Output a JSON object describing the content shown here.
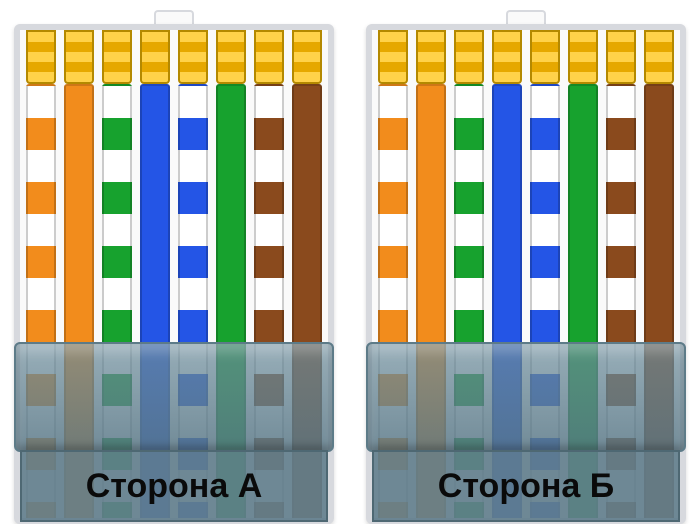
{
  "type": "infographic",
  "description": "RJ45 ethernet connector wiring diagram, two connectors side A and side B",
  "background_color": "#ffffff",
  "connectors": [
    {
      "label": "Сторона А",
      "wires": [
        {
          "base": "#ffffff",
          "stripe": "#f28c1c",
          "striped": true
        },
        {
          "base": "#f28c1c",
          "striped": false
        },
        {
          "base": "#ffffff",
          "stripe": "#17a22e",
          "striped": true
        },
        {
          "base": "#2455e6",
          "striped": false
        },
        {
          "base": "#ffffff",
          "stripe": "#2455e6",
          "striped": true
        },
        {
          "base": "#17a22e",
          "striped": false
        },
        {
          "base": "#ffffff",
          "stripe": "#8a4a1d",
          "striped": true
        },
        {
          "base": "#8a4a1d",
          "striped": false
        }
      ]
    },
    {
      "label": "Сторона Б",
      "wires": [
        {
          "base": "#ffffff",
          "stripe": "#f28c1c",
          "striped": true
        },
        {
          "base": "#f28c1c",
          "striped": false
        },
        {
          "base": "#ffffff",
          "stripe": "#17a22e",
          "striped": true
        },
        {
          "base": "#2455e6",
          "striped": false
        },
        {
          "base": "#ffffff",
          "stripe": "#2455e6",
          "striped": true
        },
        {
          "base": "#17a22e",
          "striped": false
        },
        {
          "base": "#ffffff",
          "stripe": "#8a4a1d",
          "striped": true
        },
        {
          "base": "#8a4a1d",
          "striped": false
        }
      ]
    }
  ],
  "pin_colors": {
    "light": "#ffd24a",
    "dark": "#e6a800",
    "border": "#b48900"
  },
  "housing": {
    "fill": "#fafafa",
    "border": "#d7d9de"
  },
  "clamp_color": "#6c8c9b",
  "stripe_segment": 32,
  "label_fontsize": 34,
  "label_fontweight": 700
}
